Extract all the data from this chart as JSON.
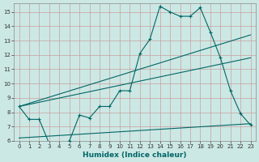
{
  "xlabel": "Humidex (Indice chaleur)",
  "background_color": "#cce8e4",
  "grid_color": "#c8a0a0",
  "line_color": "#006666",
  "xlim": [
    -0.5,
    23.5
  ],
  "ylim": [
    6,
    15.6
  ],
  "xticks": [
    0,
    1,
    2,
    3,
    4,
    5,
    6,
    7,
    8,
    9,
    10,
    11,
    12,
    13,
    14,
    15,
    16,
    17,
    18,
    19,
    20,
    21,
    22,
    23
  ],
  "yticks": [
    6,
    7,
    8,
    9,
    10,
    11,
    12,
    13,
    14,
    15
  ],
  "line1_x": [
    0,
    1,
    2,
    3,
    4,
    5,
    6,
    7,
    8,
    9,
    10,
    11,
    12,
    13,
    14,
    15,
    16,
    17,
    18,
    19,
    20,
    21,
    22,
    23
  ],
  "line1_y": [
    8.4,
    7.5,
    7.5,
    5.8,
    5.8,
    6.0,
    7.8,
    7.6,
    8.4,
    8.4,
    9.5,
    9.5,
    12.1,
    13.1,
    15.4,
    15.0,
    14.7,
    14.7,
    15.3,
    13.6,
    11.8,
    9.5,
    7.9,
    7.1
  ],
  "line2_x": [
    0,
    23
  ],
  "line2_y": [
    8.4,
    13.4
  ],
  "line3_x": [
    0,
    23
  ],
  "line3_y": [
    8.4,
    11.8
  ],
  "line4_x": [
    0,
    23
  ],
  "line4_y": [
    6.2,
    7.2
  ],
  "tick_fontsize": 5,
  "xlabel_fontsize": 6.5
}
